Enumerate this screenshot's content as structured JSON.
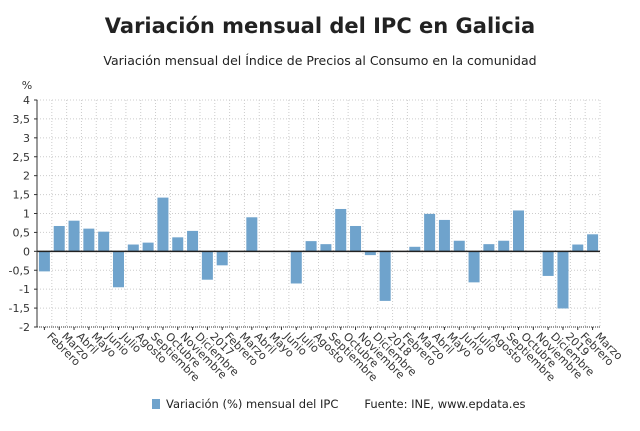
{
  "chart_data": {
    "type": "bar",
    "title": "Variación mensual del IPC en Galicia",
    "subtitle": "Variación mensual del Índice de Precios al Consumo en la comunidad",
    "ylabel": "%",
    "ylim": [
      -2,
      4
    ],
    "yticks": [
      "-2",
      "-1,5",
      "-1",
      "-0,5",
      "0",
      "0,5",
      "1",
      "1,5",
      "2",
      "2,5",
      "3",
      "3,5",
      "4"
    ],
    "grid": true,
    "legend_position": "bottom",
    "color": "#6fa3cc",
    "categories": [
      "Febrero",
      "Marzo",
      "Abril",
      "Mayo",
      "Junio",
      "Julio",
      "Agosto",
      "Septiembre",
      "Octubre",
      "Noviembre",
      "Diciembre",
      "2017",
      "Febrero",
      "Marzo",
      "Abril",
      "Mayo",
      "Junio",
      "Julio",
      "Agosto",
      "Septiembre",
      "Octubre",
      "Noviembre",
      "Diciembre",
      "2018",
      "Febrero",
      "Marzo",
      "Abril",
      "Mayo",
      "Junio",
      "Julio",
      "Agosto",
      "Septiembre",
      "Octubre",
      "Noviembre",
      "Diciembre",
      "2019",
      "Febrero",
      "Marzo"
    ],
    "series": [
      {
        "name": "Variación (%) mensual del IPC",
        "values": [
          -0.53,
          0.67,
          0.81,
          0.6,
          0.52,
          -0.95,
          0.18,
          0.23,
          1.42,
          0.37,
          0.54,
          -0.75,
          -0.37,
          0,
          0.9,
          0,
          0,
          -0.85,
          0.27,
          0.19,
          1.12,
          0.67,
          -0.1,
          -1.31,
          0,
          0.12,
          0.99,
          0.83,
          0.28,
          -0.82,
          0.19,
          0.28,
          1.08,
          0,
          -0.65,
          -1.51,
          0.18,
          0.45
        ]
      }
    ]
  },
  "footer": {
    "source": "Fuente: INE, www.epdata.es"
  }
}
